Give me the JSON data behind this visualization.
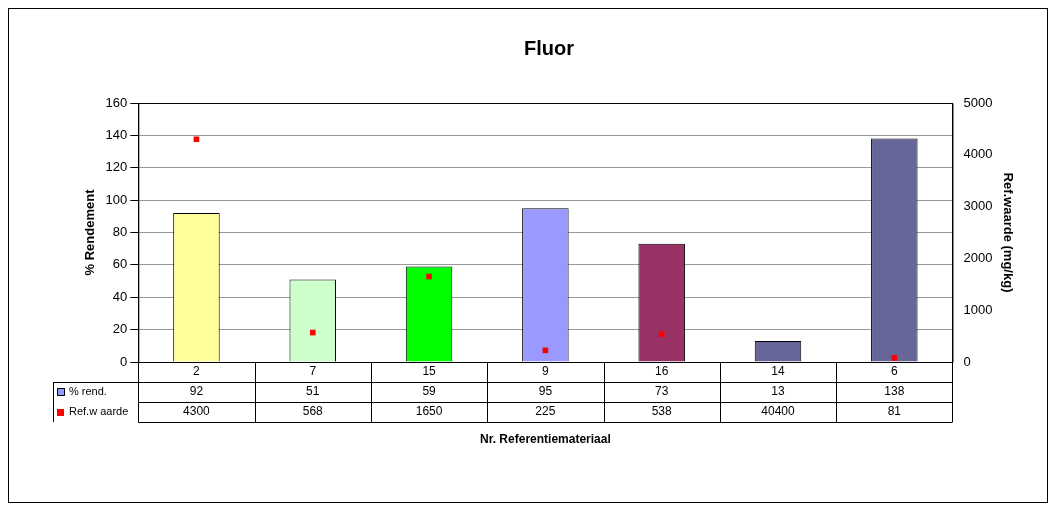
{
  "chart_data": {
    "type": "bar",
    "title": "Fluor",
    "xlabel": "Nr. Referentiemateriaal",
    "ylabel": "% Rendement",
    "y2label": "Ref.waarde (mg/kg)",
    "categories": [
      "2",
      "7",
      "15",
      "9",
      "16",
      "14",
      "6"
    ],
    "series": [
      {
        "name": "% rend.",
        "color": "#9999ff",
        "colors": [
          "#ffff99",
          "#ccffcc",
          "#00ff00",
          "#9999ff",
          "#993366",
          "#666699",
          "#666699"
        ],
        "values": [
          92,
          51,
          59,
          95,
          73,
          13,
          138
        ],
        "value_labels": [
          "92",
          "51",
          "59",
          "95",
          "73",
          "13",
          "138"
        ]
      },
      {
        "name": "Ref.w aarde",
        "type": "scatter",
        "axis": "y2",
        "marker": "square",
        "color": "#ff0000",
        "values": [
          4300,
          568,
          1650,
          225,
          538,
          null,
          81
        ],
        "value_labels": [
          "4300",
          "568",
          "1650",
          "225",
          "538",
          "40400",
          "81"
        ]
      }
    ],
    "ylim": [
      0,
      160
    ],
    "yticks": [
      0,
      20,
      40,
      60,
      80,
      100,
      120,
      140,
      160
    ],
    "y2lim": [
      0,
      5000
    ],
    "y2ticks": [
      0,
      1000,
      2000,
      3000,
      4000,
      5000
    ],
    "grid": "y",
    "legend": "bottom left"
  }
}
